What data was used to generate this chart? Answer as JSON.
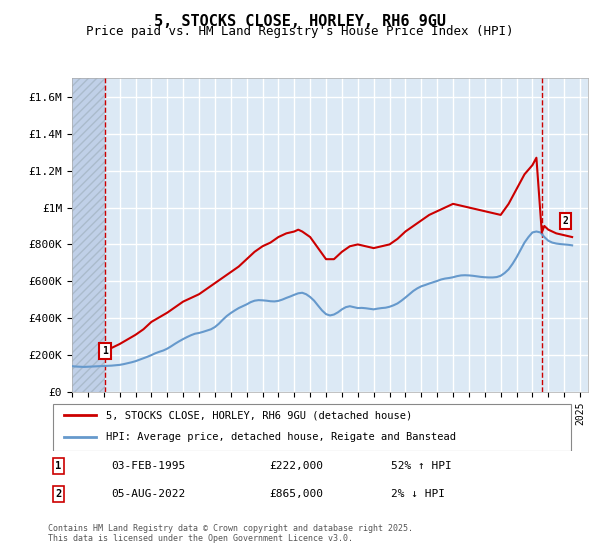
{
  "title": "5, STOCKS CLOSE, HORLEY, RH6 9GU",
  "subtitle": "Price paid vs. HM Land Registry's House Price Index (HPI)",
  "ylabel": "",
  "xlabel": "",
  "ylim": [
    0,
    1700000
  ],
  "yticks": [
    0,
    200000,
    400000,
    600000,
    800000,
    1000000,
    1200000,
    1400000,
    1600000
  ],
  "ytick_labels": [
    "£0",
    "£200K",
    "£400K",
    "£600K",
    "£800K",
    "£1M",
    "£1.2M",
    "£1.4M",
    "£1.6M"
  ],
  "background_color": "#dce9f5",
  "hatch_color": "#c0d0e8",
  "grid_color": "#ffffff",
  "line1_color": "#cc0000",
  "line2_color": "#6699cc",
  "point1_x": 1995.09,
  "point1_y": 222000,
  "point2_x": 2022.59,
  "point2_y": 865000,
  "legend_line1": "5, STOCKS CLOSE, HORLEY, RH6 9GU (detached house)",
  "legend_line2": "HPI: Average price, detached house, Reigate and Banstead",
  "annotation1_label": "1",
  "annotation2_label": "2",
  "note1_num": "1",
  "note1_date": "03-FEB-1995",
  "note1_price": "£222,000",
  "note1_hpi": "52% ↑ HPI",
  "note2_num": "2",
  "note2_date": "05-AUG-2022",
  "note2_price": "£865,000",
  "note2_hpi": "2% ↓ HPI",
  "footer": "Contains HM Land Registry data © Crown copyright and database right 2025.\nThis data is licensed under the Open Government Licence v3.0.",
  "hpi_data_x": [
    1993.0,
    1993.25,
    1993.5,
    1993.75,
    1994.0,
    1994.25,
    1994.5,
    1994.75,
    1995.0,
    1995.25,
    1995.5,
    1995.75,
    1996.0,
    1996.25,
    1996.5,
    1996.75,
    1997.0,
    1997.25,
    1997.5,
    1997.75,
    1998.0,
    1998.25,
    1998.5,
    1998.75,
    1999.0,
    1999.25,
    1999.5,
    1999.75,
    2000.0,
    2000.25,
    2000.5,
    2000.75,
    2001.0,
    2001.25,
    2001.5,
    2001.75,
    2002.0,
    2002.25,
    2002.5,
    2002.75,
    2003.0,
    2003.25,
    2003.5,
    2003.75,
    2004.0,
    2004.25,
    2004.5,
    2004.75,
    2005.0,
    2005.25,
    2005.5,
    2005.75,
    2006.0,
    2006.25,
    2006.5,
    2006.75,
    2007.0,
    2007.25,
    2007.5,
    2007.75,
    2008.0,
    2008.25,
    2008.5,
    2008.75,
    2009.0,
    2009.25,
    2009.5,
    2009.75,
    2010.0,
    2010.25,
    2010.5,
    2010.75,
    2011.0,
    2011.25,
    2011.5,
    2011.75,
    2012.0,
    2012.25,
    2012.5,
    2012.75,
    2013.0,
    2013.25,
    2013.5,
    2013.75,
    2014.0,
    2014.25,
    2014.5,
    2014.75,
    2015.0,
    2015.25,
    2015.5,
    2015.75,
    2016.0,
    2016.25,
    2016.5,
    2016.75,
    2017.0,
    2017.25,
    2017.5,
    2017.75,
    2018.0,
    2018.25,
    2018.5,
    2018.75,
    2019.0,
    2019.25,
    2019.5,
    2019.75,
    2020.0,
    2020.25,
    2020.5,
    2020.75,
    2021.0,
    2021.25,
    2021.5,
    2021.75,
    2022.0,
    2022.25,
    2022.5,
    2022.75,
    2023.0,
    2023.25,
    2023.5,
    2023.75,
    2024.0,
    2024.25,
    2024.5
  ],
  "hpi_data_y": [
    140000,
    138000,
    137000,
    136000,
    137000,
    138000,
    139000,
    140000,
    141000,
    142000,
    143000,
    145000,
    147000,
    151000,
    156000,
    161000,
    167000,
    175000,
    183000,
    191000,
    200000,
    210000,
    218000,
    225000,
    235000,
    248000,
    262000,
    275000,
    287000,
    298000,
    308000,
    316000,
    320000,
    326000,
    333000,
    340000,
    352000,
    370000,
    392000,
    412000,
    428000,
    442000,
    455000,
    465000,
    475000,
    487000,
    495000,
    498000,
    497000,
    495000,
    492000,
    491000,
    494000,
    501000,
    510000,
    518000,
    527000,
    535000,
    538000,
    530000,
    515000,
    495000,
    468000,
    442000,
    422000,
    415000,
    420000,
    432000,
    448000,
    460000,
    465000,
    460000,
    455000,
    456000,
    454000,
    451000,
    448000,
    452000,
    455000,
    457000,
    462000,
    470000,
    480000,
    495000,
    512000,
    530000,
    548000,
    562000,
    573000,
    580000,
    588000,
    595000,
    602000,
    610000,
    615000,
    618000,
    622000,
    628000,
    632000,
    633000,
    632000,
    630000,
    627000,
    624000,
    622000,
    621000,
    621000,
    623000,
    630000,
    645000,
    665000,
    695000,
    730000,
    770000,
    810000,
    840000,
    865000,
    870000,
    865000,
    840000,
    820000,
    810000,
    805000,
    802000,
    800000,
    798000,
    795000
  ],
  "house_data_x": [
    1995.09,
    2022.59
  ],
  "house_data_y": [
    222000,
    865000
  ],
  "hatch_end_x": 1995.09,
  "xmin": 1993.0,
  "xmax": 2025.5,
  "dashed_x1": 1995.09,
  "dashed_x2": 2022.59
}
